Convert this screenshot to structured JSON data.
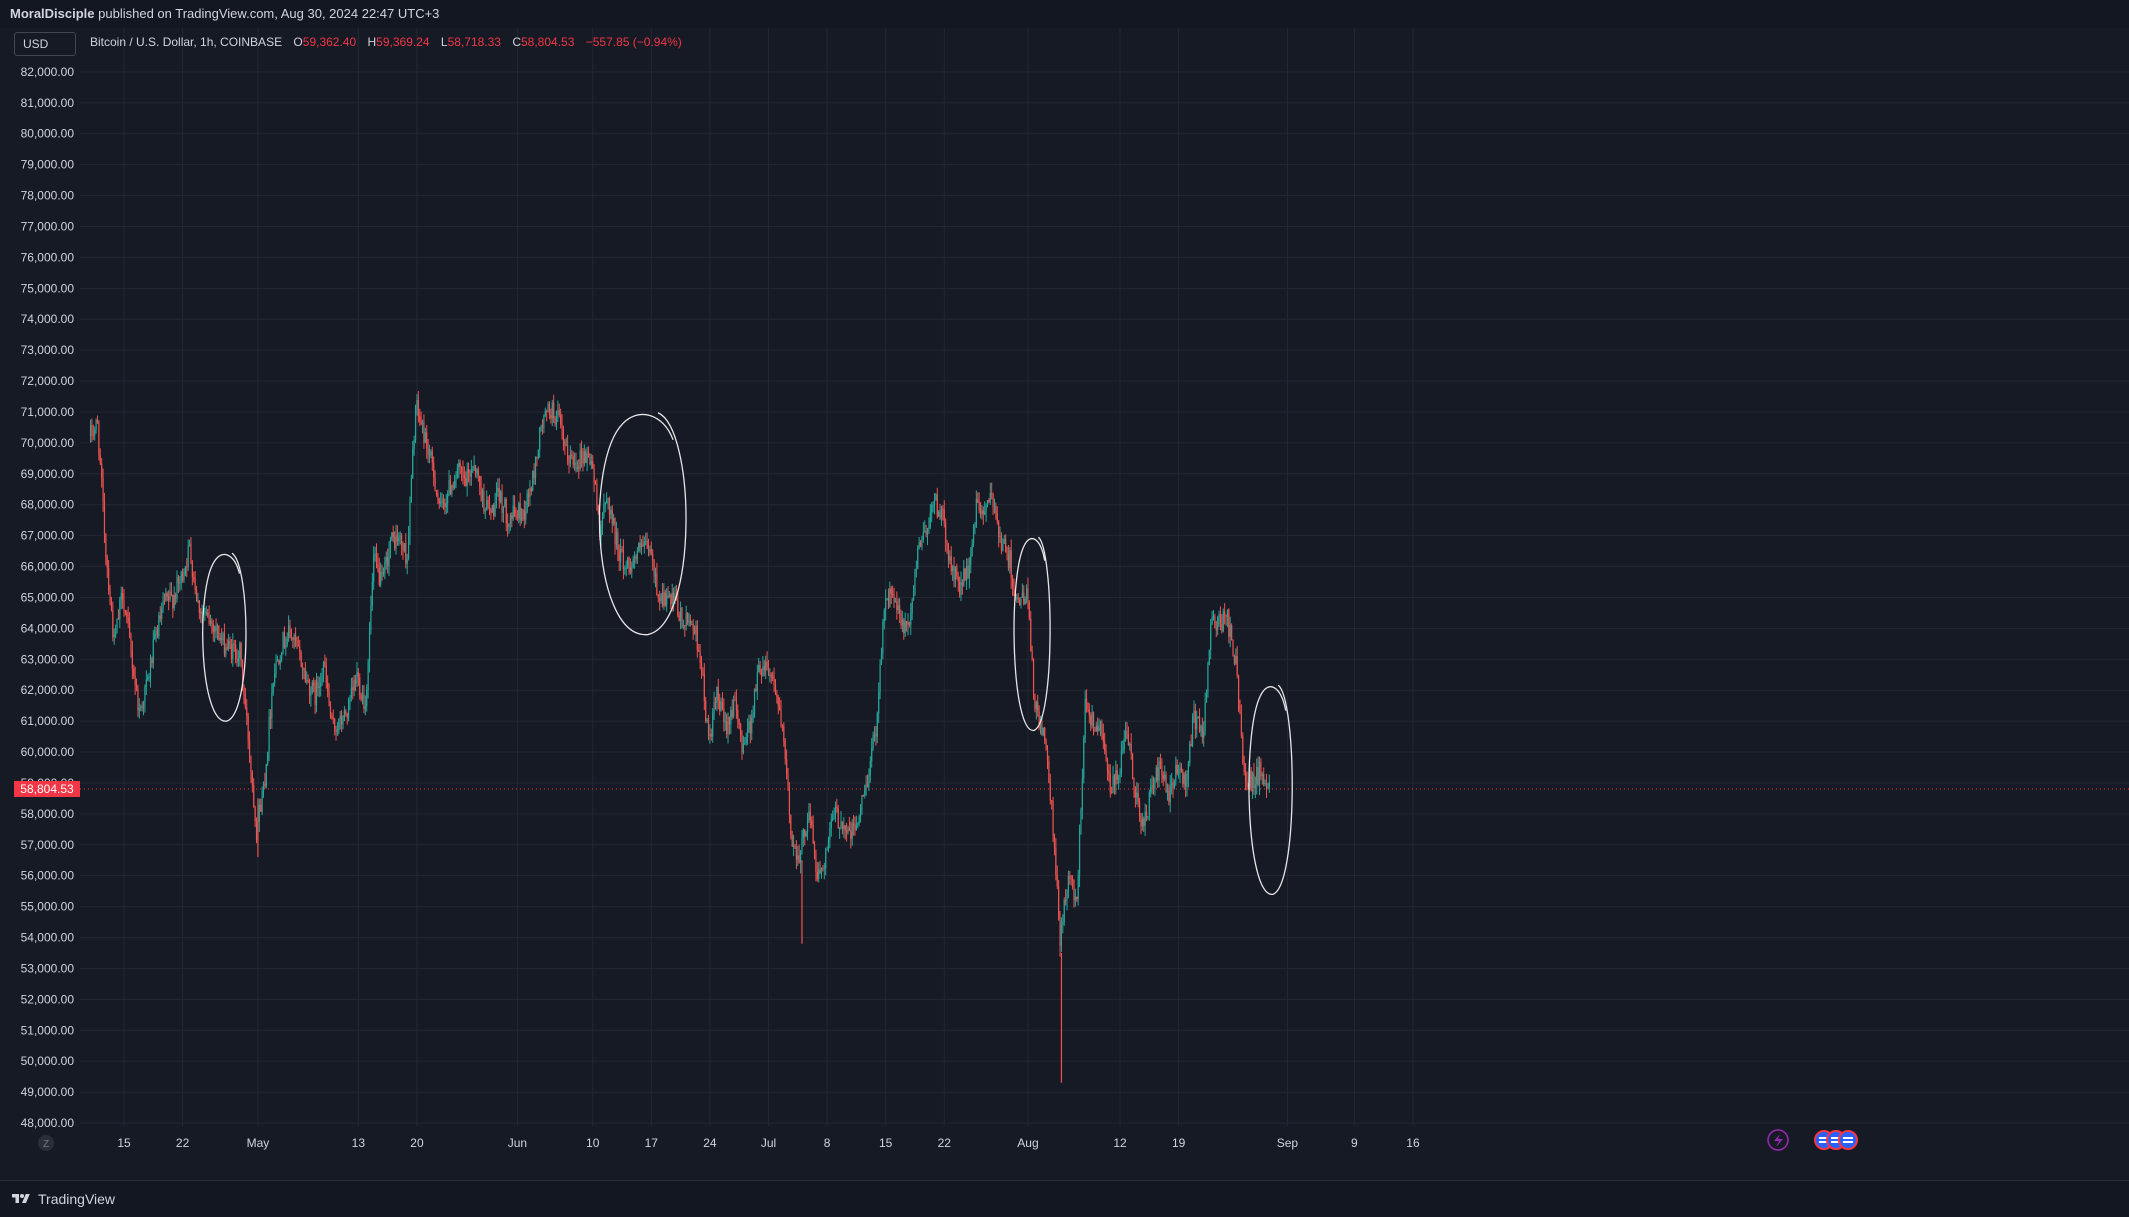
{
  "header": {
    "author": "MoralDisciple",
    "published_text": "published on TradingView.com, Aug 30, 2024 22:47 UTC+3"
  },
  "currency": "USD",
  "legend": {
    "symbol": "Bitcoin / U.S. Dollar, 1h, COINBASE",
    "open_label": "O",
    "open": "59,362.40",
    "high_label": "H",
    "high": "59,369.24",
    "low_label": "L",
    "low": "58,718.33",
    "close_label": "C",
    "close": "58,804.53",
    "change": "−557.85 (−0.94%)"
  },
  "footer": {
    "brand": "TradingView"
  },
  "colors": {
    "background": "#161a25",
    "up": "#26a69a",
    "down": "#ef5350",
    "grid": "#232733",
    "axis_text": "#d1d4dc",
    "price_label": "#f23645"
  },
  "chart_data": {
    "type": "candlestick",
    "symbol": "Bitcoin / U.S. Dollar",
    "interval": "1h",
    "exchange": "COINBASE",
    "current_price": 58804.53,
    "current_price_label": "58,804.53",
    "ylim": [
      47500,
      83000
    ],
    "y_ticks": [
      48000,
      49000,
      50000,
      51000,
      52000,
      53000,
      54000,
      55000,
      56000,
      57000,
      58000,
      59000,
      60000,
      61000,
      62000,
      63000,
      64000,
      65000,
      66000,
      67000,
      68000,
      69000,
      70000,
      71000,
      72000,
      73000,
      74000,
      75000,
      76000,
      77000,
      78000,
      79000,
      80000,
      81000,
      82000
    ],
    "x_ticks": [
      {
        "date": "2024-04-15",
        "label": "15"
      },
      {
        "date": "2024-04-22",
        "label": "22"
      },
      {
        "date": "2024-05-01",
        "label": "May"
      },
      {
        "date": "2024-05-13",
        "label": "13"
      },
      {
        "date": "2024-05-20",
        "label": "20"
      },
      {
        "date": "2024-06-01",
        "label": "Jun"
      },
      {
        "date": "2024-06-10",
        "label": "10"
      },
      {
        "date": "2024-06-17",
        "label": "17"
      },
      {
        "date": "2024-06-24",
        "label": "24"
      },
      {
        "date": "2024-07-01",
        "label": "Jul"
      },
      {
        "date": "2024-07-08",
        "label": "8"
      },
      {
        "date": "2024-07-15",
        "label": "15"
      },
      {
        "date": "2024-07-22",
        "label": "22"
      },
      {
        "date": "2024-08-01",
        "label": "Aug"
      },
      {
        "date": "2024-08-12",
        "label": "12"
      },
      {
        "date": "2024-08-19",
        "label": "19"
      },
      {
        "date": "2024-09-01",
        "label": "Sep"
      },
      {
        "date": "2024-09-09",
        "label": "9"
      },
      {
        "date": "2024-09-16",
        "label": "16"
      }
    ],
    "x_range": [
      "2024-04-11",
      "2024-09-30"
    ],
    "price_path": [
      [
        "2024-04-11",
        70200
      ],
      [
        "2024-04-12",
        70600
      ],
      [
        "2024-04-13",
        66500
      ],
      [
        "2024-04-14",
        63500
      ],
      [
        "2024-04-15",
        65200
      ],
      [
        "2024-04-16",
        63200
      ],
      [
        "2024-04-17",
        61300
      ],
      [
        "2024-04-18",
        62300
      ],
      [
        "2024-04-19",
        63800
      ],
      [
        "2024-04-20",
        64800
      ],
      [
        "2024-04-21",
        65000
      ],
      [
        "2024-04-22",
        65600
      ],
      [
        "2024-04-23",
        66600
      ],
      [
        "2024-04-24",
        64800
      ],
      [
        "2024-04-25",
        64300
      ],
      [
        "2024-04-26",
        64100
      ],
      [
        "2024-04-27",
        63500
      ],
      [
        "2024-04-28",
        63300
      ],
      [
        "2024-04-29",
        63200
      ],
      [
        "2024-04-30",
        60500
      ],
      [
        "2024-05-01",
        57500
      ],
      [
        "2024-05-02",
        59200
      ],
      [
        "2024-05-03",
        62500
      ],
      [
        "2024-05-04",
        63500
      ],
      [
        "2024-05-05",
        63900
      ],
      [
        "2024-05-06",
        63200
      ],
      [
        "2024-05-07",
        62300
      ],
      [
        "2024-05-08",
        61800
      ],
      [
        "2024-05-09",
        62900
      ],
      [
        "2024-05-10",
        60800
      ],
      [
        "2024-05-11",
        60900
      ],
      [
        "2024-05-12",
        61400
      ],
      [
        "2024-05-13",
        62500
      ],
      [
        "2024-05-14",
        61500
      ],
      [
        "2024-05-15",
        66200
      ],
      [
        "2024-05-16",
        65400
      ],
      [
        "2024-05-17",
        66800
      ],
      [
        "2024-05-18",
        66900
      ],
      [
        "2024-05-19",
        66300
      ],
      [
        "2024-05-20",
        71200
      ],
      [
        "2024-05-21",
        70300
      ],
      [
        "2024-05-22",
        69200
      ],
      [
        "2024-05-23",
        67800
      ],
      [
        "2024-05-24",
        68500
      ],
      [
        "2024-05-25",
        69100
      ],
      [
        "2024-05-26",
        68700
      ],
      [
        "2024-05-27",
        69400
      ],
      [
        "2024-05-28",
        68200
      ],
      [
        "2024-05-29",
        67700
      ],
      [
        "2024-05-30",
        68300
      ],
      [
        "2024-05-31",
        67600
      ],
      [
        "2024-06-01",
        67700
      ],
      [
        "2024-06-02",
        67800
      ],
      [
        "2024-06-03",
        68800
      ],
      [
        "2024-06-04",
        70500
      ],
      [
        "2024-06-05",
        71100
      ],
      [
        "2024-06-06",
        70800
      ],
      [
        "2024-06-07",
        69600
      ],
      [
        "2024-06-08",
        69400
      ],
      [
        "2024-06-09",
        69600
      ],
      [
        "2024-06-10",
        69500
      ],
      [
        "2024-06-11",
        67300
      ],
      [
        "2024-06-12",
        68200
      ],
      [
        "2024-06-13",
        66800
      ],
      [
        "2024-06-14",
        66000
      ],
      [
        "2024-06-15",
        66200
      ],
      [
        "2024-06-16",
        66600
      ],
      [
        "2024-06-17",
        66500
      ],
      [
        "2024-06-18",
        65100
      ],
      [
        "2024-06-19",
        64900
      ],
      [
        "2024-06-20",
        64800
      ],
      [
        "2024-06-21",
        64100
      ],
      [
        "2024-06-22",
        64300
      ],
      [
        "2024-06-23",
        63200
      ],
      [
        "2024-06-24",
        60300
      ],
      [
        "2024-06-25",
        61800
      ],
      [
        "2024-06-26",
        60800
      ],
      [
        "2024-06-27",
        61600
      ],
      [
        "2024-06-28",
        60300
      ],
      [
        "2024-06-29",
        60900
      ],
      [
        "2024-06-30",
        62700
      ],
      [
        "2024-07-01",
        62900
      ],
      [
        "2024-07-02",
        62100
      ],
      [
        "2024-07-03",
        60200
      ],
      [
        "2024-07-04",
        57000
      ],
      [
        "2024-07-05",
        56700
      ],
      [
        "2024-07-06",
        58200
      ],
      [
        "2024-07-07",
        55900
      ],
      [
        "2024-07-08",
        56700
      ],
      [
        "2024-07-09",
        58000
      ],
      [
        "2024-07-10",
        57700
      ],
      [
        "2024-07-11",
        57300
      ],
      [
        "2024-07-12",
        57900
      ],
      [
        "2024-07-13",
        59200
      ],
      [
        "2024-07-14",
        60800
      ],
      [
        "2024-07-15",
        64800
      ],
      [
        "2024-07-16",
        65100
      ],
      [
        "2024-07-17",
        64100
      ],
      [
        "2024-07-18",
        63900
      ],
      [
        "2024-07-19",
        66700
      ],
      [
        "2024-07-20",
        67200
      ],
      [
        "2024-07-21",
        68200
      ],
      [
        "2024-07-22",
        67500
      ],
      [
        "2024-07-23",
        65900
      ],
      [
        "2024-07-24",
        65400
      ],
      [
        "2024-07-25",
        65800
      ],
      [
        "2024-07-26",
        67900
      ],
      [
        "2024-07-27",
        67800
      ],
      [
        "2024-07-28",
        68200
      ],
      [
        "2024-07-29",
        66800
      ],
      [
        "2024-07-30",
        66200
      ],
      [
        "2024-07-31",
        64600
      ],
      [
        "2024-08-01",
        65300
      ],
      [
        "2024-08-02",
        61400
      ],
      [
        "2024-08-03",
        60700
      ],
      [
        "2024-08-04",
        58100
      ],
      [
        "2024-08-05",
        54000
      ],
      [
        "2024-08-06",
        56000
      ],
      [
        "2024-08-07",
        55100
      ],
      [
        "2024-08-08",
        61700
      ],
      [
        "2024-08-09",
        60900
      ],
      [
        "2024-08-10",
        60900
      ],
      [
        "2024-08-11",
        58700
      ],
      [
        "2024-08-12",
        59300
      ],
      [
        "2024-08-13",
        60600
      ],
      [
        "2024-08-14",
        58700
      ],
      [
        "2024-08-15",
        57500
      ],
      [
        "2024-08-16",
        58900
      ],
      [
        "2024-08-17",
        59500
      ],
      [
        "2024-08-18",
        58400
      ],
      [
        "2024-08-19",
        59500
      ],
      [
        "2024-08-20",
        59000
      ],
      [
        "2024-08-21",
        61200
      ],
      [
        "2024-08-22",
        60400
      ],
      [
        "2024-08-23",
        64100
      ],
      [
        "2024-08-24",
        64200
      ],
      [
        "2024-08-25",
        64300
      ],
      [
        "2024-08-26",
        62800
      ],
      [
        "2024-08-27",
        59400
      ],
      [
        "2024-08-28",
        59000
      ],
      [
        "2024-08-29",
        59400
      ],
      [
        "2024-08-30",
        58804
      ]
    ],
    "annotations": [
      {
        "type": "freehand-circle",
        "date_range": [
          "2024-04-24",
          "2024-04-30"
        ],
        "price_range": [
          61000,
          66300
        ]
      },
      {
        "type": "freehand-circle",
        "date_range": [
          "2024-06-10",
          "2024-06-22"
        ],
        "price_range": [
          63800,
          70800
        ]
      },
      {
        "type": "freehand-circle",
        "date_range": [
          "2024-07-30",
          "2024-08-04"
        ],
        "price_range": [
          60700,
          66800
        ]
      },
      {
        "type": "freehand-circle",
        "date_range": [
          "2024-08-27",
          "2024-09-02"
        ],
        "price_range": [
          55400,
          62000
        ]
      }
    ],
    "grid": true
  }
}
